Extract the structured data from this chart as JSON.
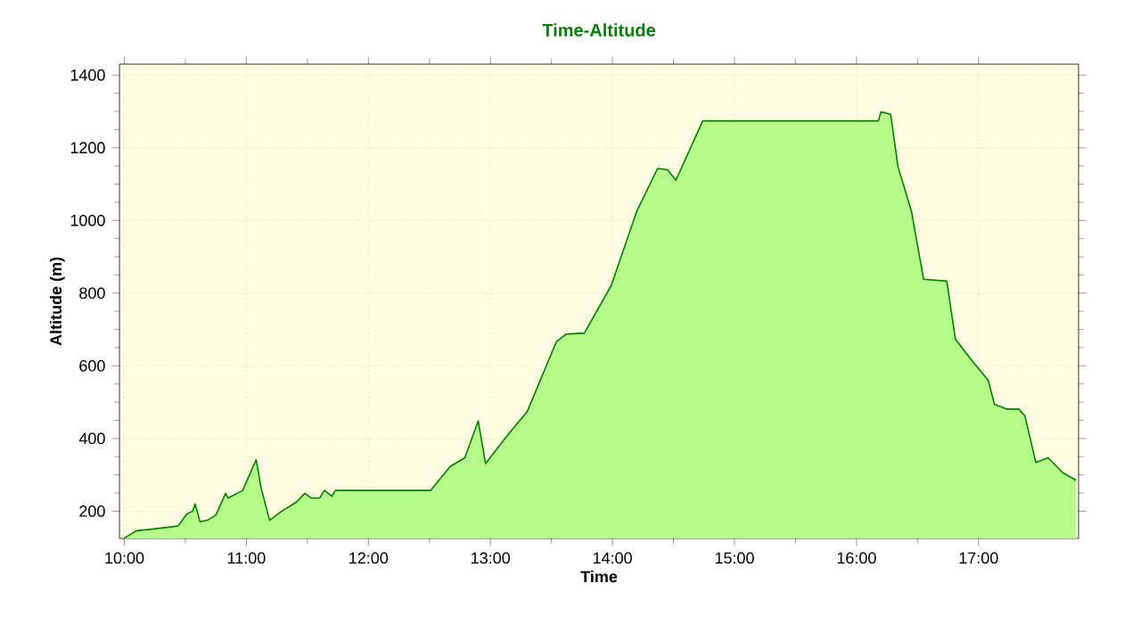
{
  "chart_data": {
    "type": "area",
    "title": "Time-Altitude",
    "xlabel": "Time",
    "ylabel": "Altitude (m)",
    "xlim": [
      9.96,
      17.82
    ],
    "ylim": [
      125,
      1430
    ],
    "xticks": [
      {
        "value": 10,
        "label": "10:00"
      },
      {
        "value": 11,
        "label": "11:00"
      },
      {
        "value": 12,
        "label": "12:00"
      },
      {
        "value": 13,
        "label": "13:00"
      },
      {
        "value": 14,
        "label": "14:00"
      },
      {
        "value": 15,
        "label": "15:00"
      },
      {
        "value": 16,
        "label": "16:00"
      },
      {
        "value": 17,
        "label": "17:00"
      }
    ],
    "yticks": [
      200,
      400,
      600,
      800,
      1000,
      1200,
      1400
    ],
    "grid": true,
    "series": [
      {
        "color": "#008000",
        "x": [
          10.0,
          10.1,
          10.24,
          10.44,
          10.51,
          10.56,
          10.58,
          10.62,
          10.68,
          10.75,
          10.83,
          10.85,
          10.97,
          11.08,
          11.12,
          11.19,
          11.29,
          11.41,
          11.48,
          11.53,
          11.6,
          11.64,
          11.7,
          11.73,
          12.51,
          12.67,
          12.79,
          12.9,
          12.96,
          13.15,
          13.3,
          13.54,
          13.62,
          13.77,
          13.99,
          14.2,
          14.37,
          14.45,
          14.52,
          14.74,
          16.18,
          16.2,
          16.28,
          16.34,
          16.45,
          16.55,
          16.74,
          16.81,
          16.94,
          17.08,
          17.13,
          17.23,
          17.33,
          17.38,
          17.47,
          17.57,
          17.69,
          17.8
        ],
        "values": [
          126,
          146,
          151,
          159,
          192,
          200,
          220,
          171,
          175,
          189,
          249,
          236,
          257,
          342,
          265,
          175,
          200,
          225,
          249,
          236,
          236,
          257,
          241,
          257,
          257,
          323,
          347,
          448,
          331,
          413,
          473,
          666,
          687,
          690,
          821,
          1026,
          1143,
          1140,
          1111,
          1274,
          1274,
          1299,
          1292,
          1148,
          1026,
          838,
          833,
          674,
          617,
          560,
          494,
          481,
          481,
          462,
          334,
          347,
          306,
          285
        ]
      }
    ]
  }
}
